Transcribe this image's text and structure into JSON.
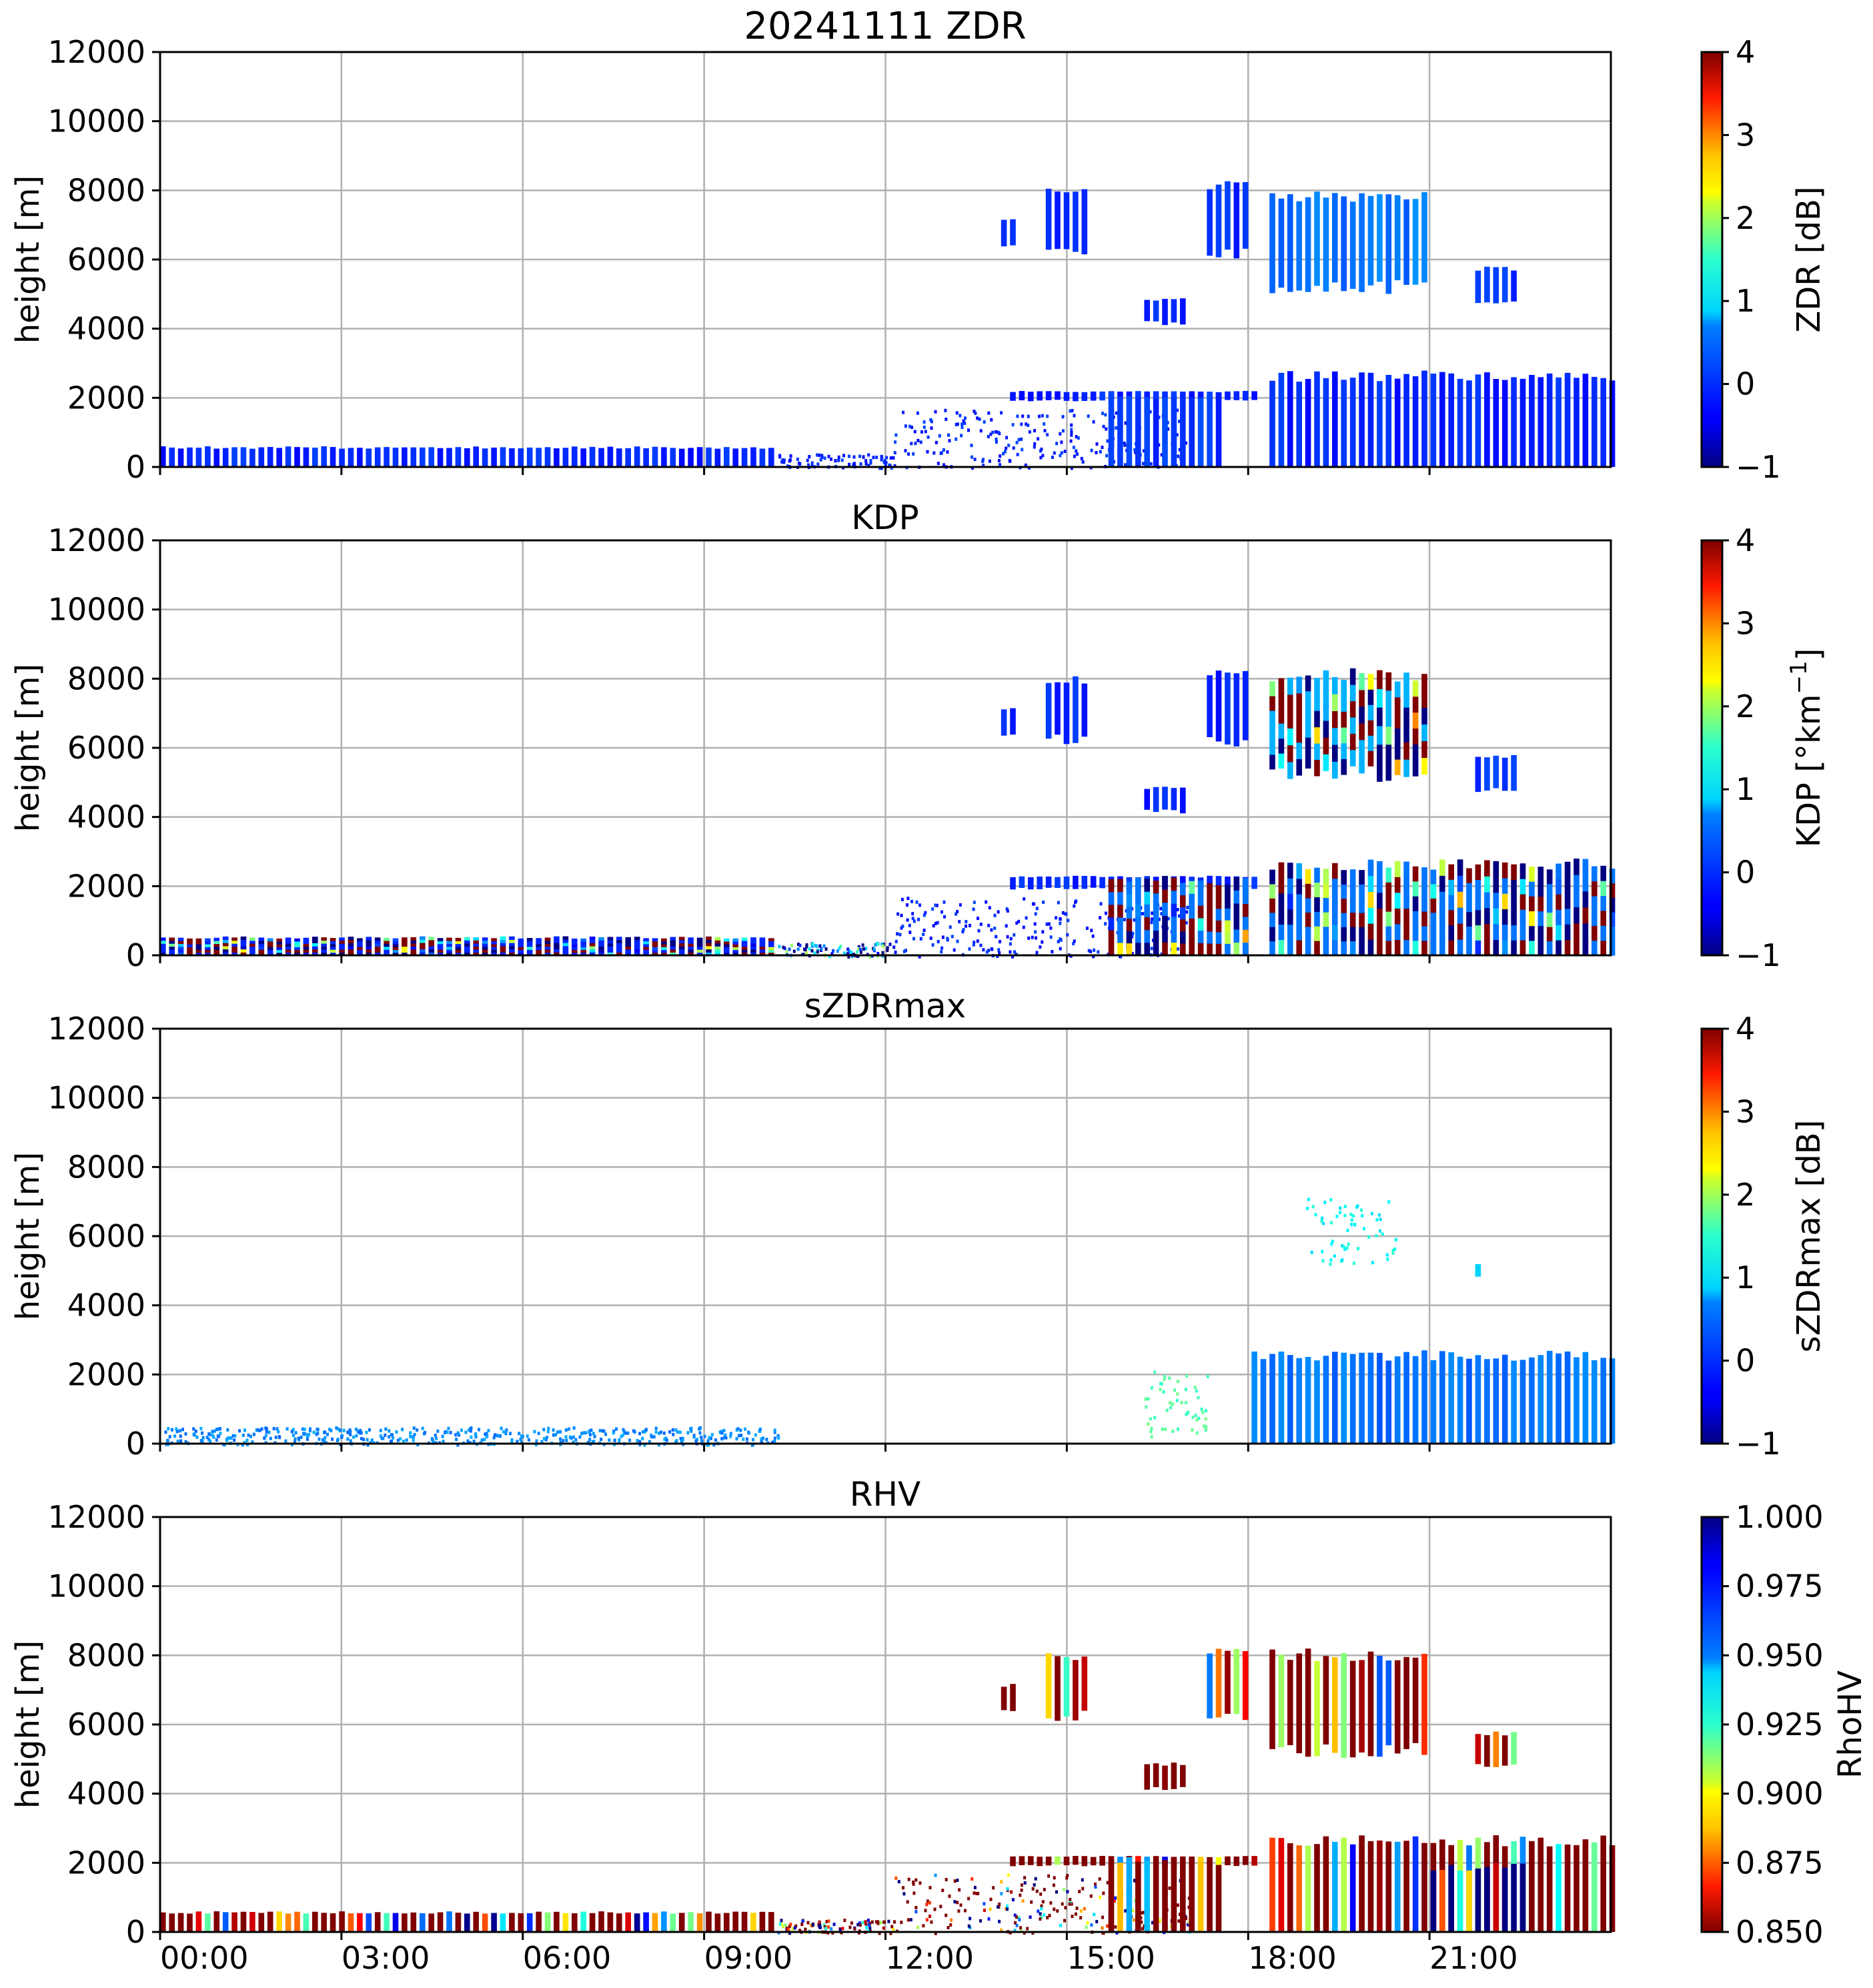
{
  "chart_data": [
    {
      "type": "heatmap",
      "id": "zdr",
      "title": "20241111 ZDR",
      "xlabel": "",
      "ylabel": "height [m]",
      "xlim_hours": [
        0,
        24
      ],
      "ylim": [
        0,
        12000
      ],
      "x_ticks": [
        "00:00",
        "03:00",
        "06:00",
        "09:00",
        "12:00",
        "15:00",
        "18:00",
        "21:00"
      ],
      "x_tick_labels_visible": false,
      "y_ticks": [
        "0",
        "2000",
        "4000",
        "6000",
        "8000",
        "10000",
        "12000"
      ],
      "grid": true,
      "colormap": "jet",
      "colorbar": {
        "label": "ZDR [dB]",
        "vmin": -1,
        "vmax": 4,
        "ticks": [
          "−1",
          "0",
          "1",
          "2",
          "3",
          "4"
        ]
      },
      "echo_regions": [
        {
          "t": [
            0.0,
            10.1
          ],
          "h": [
            0,
            600
          ],
          "value": -0.2,
          "stripes": true
        },
        {
          "t": [
            10.1,
            12.0
          ],
          "h": [
            0,
            400
          ],
          "value": -0.2,
          "sparse": true
        },
        {
          "t": [
            12.0,
            17.0
          ],
          "h": [
            0,
            1700
          ],
          "value": -0.2,
          "sparse": true
        },
        {
          "t": [
            14.0,
            18.2
          ],
          "h": [
            1900,
            2200
          ],
          "value": -0.2,
          "stripes": true
        },
        {
          "t": [
            15.6,
            17.5
          ],
          "h": [
            0,
            2200
          ],
          "value": -0.1,
          "stripes": true
        },
        {
          "t": [
            18.3,
            24.0
          ],
          "h": [
            0,
            2800
          ],
          "value": -0.2,
          "stripes": true
        },
        {
          "t": [
            13.9,
            14.1
          ],
          "h": [
            6300,
            7200
          ],
          "value": -0.2,
          "stripes": true
        },
        {
          "t": [
            14.6,
            15.3
          ],
          "h": [
            6100,
            8100
          ],
          "value": -0.2,
          "stripes": true
        },
        {
          "t": [
            16.2,
            16.9
          ],
          "h": [
            4100,
            4900
          ],
          "value": -0.2,
          "stripes": true
        },
        {
          "t": [
            17.3,
            18.0
          ],
          "h": [
            6000,
            8300
          ],
          "value": -0.2,
          "stripes": true
        },
        {
          "t": [
            18.3,
            20.9
          ],
          "h": [
            5000,
            8000
          ],
          "value": 0.2,
          "stripes": true
        },
        {
          "t": [
            21.7,
            22.4
          ],
          "h": [
            4700,
            5800
          ],
          "value": -0.1,
          "stripes": true
        }
      ]
    },
    {
      "type": "heatmap",
      "id": "kdp",
      "title": "KDP",
      "xlabel": "",
      "ylabel": "height [m]",
      "xlim_hours": [
        0,
        24
      ],
      "ylim": [
        0,
        12000
      ],
      "x_ticks": [
        "00:00",
        "03:00",
        "06:00",
        "09:00",
        "12:00",
        "15:00",
        "18:00",
        "21:00"
      ],
      "x_tick_labels_visible": false,
      "y_ticks": [
        "0",
        "2000",
        "4000",
        "6000",
        "8000",
        "10000",
        "12000"
      ],
      "grid": true,
      "colormap": "jet",
      "colorbar": {
        "label_main": "KDP [°km",
        "label_sup": "−1",
        "label_end": "]",
        "vmin": -1,
        "vmax": 4,
        "ticks": [
          "−1",
          "0",
          "1",
          "2",
          "3",
          "4"
        ]
      },
      "echo_regions": [
        {
          "t": [
            0.0,
            10.1
          ],
          "h": [
            0,
            550
          ],
          "value": -0.2,
          "noisy": true,
          "stripes": true
        },
        {
          "t": [
            10.1,
            12.0
          ],
          "h": [
            0,
            400
          ],
          "value": -0.2,
          "sparse": true,
          "noisy": true
        },
        {
          "t": [
            12.0,
            17.0
          ],
          "h": [
            0,
            1700
          ],
          "value": -0.2,
          "sparse": true
        },
        {
          "t": [
            14.0,
            18.2
          ],
          "h": [
            1900,
            2300
          ],
          "value": -0.2,
          "stripes": true
        },
        {
          "t": [
            15.6,
            18.0
          ],
          "h": [
            0,
            2300
          ],
          "value": 0.2,
          "noisy": true,
          "stripes": true
        },
        {
          "t": [
            18.3,
            24.0
          ],
          "h": [
            0,
            2800
          ],
          "value": 0.2,
          "noisy": true,
          "stripes": true
        },
        {
          "t": [
            13.9,
            14.1
          ],
          "h": [
            6300,
            7200
          ],
          "value": -0.2,
          "stripes": true
        },
        {
          "t": [
            14.6,
            15.3
          ],
          "h": [
            6100,
            8100
          ],
          "value": -0.2,
          "stripes": true
        },
        {
          "t": [
            16.2,
            16.9
          ],
          "h": [
            4100,
            4900
          ],
          "value": -0.2,
          "stripes": true
        },
        {
          "t": [
            17.3,
            18.0
          ],
          "h": [
            6000,
            8300
          ],
          "value": -0.2,
          "stripes": true
        },
        {
          "t": [
            18.3,
            20.9
          ],
          "h": [
            5000,
            8300
          ],
          "value": 0.5,
          "noisy": true,
          "stripes": true
        },
        {
          "t": [
            21.7,
            22.4
          ],
          "h": [
            4700,
            5800
          ],
          "value": -0.1,
          "stripes": true
        }
      ]
    },
    {
      "type": "heatmap",
      "id": "szdrmax",
      "title": "sZDRmax",
      "xlabel": "",
      "ylabel": "height [m]",
      "xlim_hours": [
        0,
        24
      ],
      "ylim": [
        0,
        12000
      ],
      "x_ticks": [
        "00:00",
        "03:00",
        "06:00",
        "09:00",
        "12:00",
        "15:00",
        "18:00",
        "21:00"
      ],
      "x_tick_labels_visible": false,
      "y_ticks": [
        "0",
        "2000",
        "4000",
        "6000",
        "8000",
        "10000",
        "12000"
      ],
      "grid": true,
      "colormap": "jet",
      "colorbar": {
        "label": "sZDRmax [dB]",
        "vmin": -1,
        "vmax": 4,
        "ticks": [
          "−1",
          "0",
          "1",
          "2",
          "3",
          "4"
        ]
      },
      "echo_regions": [
        {
          "t": [
            0.0,
            10.2
          ],
          "h": [
            0,
            500
          ],
          "value": 0.3,
          "stripes": true,
          "sparse": true
        },
        {
          "t": [
            16.2,
            17.3
          ],
          "h": [
            0,
            2200
          ],
          "value": 1.3,
          "stripes": true,
          "sparse": true
        },
        {
          "t": [
            18.8,
            20.3
          ],
          "h": [
            5200,
            7200
          ],
          "value": 0.9,
          "stripes": true,
          "sparse": true
        },
        {
          "t": [
            18.0,
            24.0
          ],
          "h": [
            0,
            2700
          ],
          "value": 0.2,
          "stripes": true
        },
        {
          "t": [
            21.7,
            21.8
          ],
          "h": [
            4800,
            5200
          ],
          "value": 0.8,
          "stripes": true
        }
      ]
    },
    {
      "type": "heatmap",
      "id": "rhv",
      "title": "RHV",
      "xlabel": "",
      "ylabel": "height [m]",
      "xlim_hours": [
        0,
        24
      ],
      "ylim": [
        0,
        12000
      ],
      "x_ticks": [
        "00:00",
        "03:00",
        "06:00",
        "09:00",
        "12:00",
        "15:00",
        "18:00",
        "21:00"
      ],
      "x_tick_labels_visible": true,
      "y_ticks": [
        "0",
        "2000",
        "4000",
        "6000",
        "8000",
        "10000",
        "12000"
      ],
      "grid": true,
      "colormap": "jet_r",
      "colorbar": {
        "label": "RhoHV",
        "vmin": 0.85,
        "vmax": 1.0,
        "ticks": [
          "0.850",
          "0.875",
          "0.900",
          "0.925",
          "0.950",
          "0.975",
          "1.000"
        ]
      },
      "echo_regions": [
        {
          "t": [
            0.0,
            10.1
          ],
          "h": [
            0,
            600
          ],
          "value": 0.85,
          "stripes": true
        },
        {
          "t": [
            10.1,
            12.0
          ],
          "h": [
            0,
            400
          ],
          "value": 0.85,
          "sparse": true
        },
        {
          "t": [
            12.0,
            17.0
          ],
          "h": [
            0,
            1700
          ],
          "value": 0.85,
          "sparse": true
        },
        {
          "t": [
            14.0,
            18.2
          ],
          "h": [
            1900,
            2200
          ],
          "value": 0.85,
          "stripes": true
        },
        {
          "t": [
            15.6,
            17.5
          ],
          "h": [
            0,
            2200
          ],
          "value": 0.85,
          "stripes": true
        },
        {
          "t": [
            18.3,
            24.0
          ],
          "h": [
            0,
            2800
          ],
          "value": 0.85,
          "stripes": true
        },
        {
          "t": [
            21.0,
            22.5
          ],
          "h": [
            0,
            2000
          ],
          "value": 1.0,
          "stripes": true
        },
        {
          "t": [
            13.9,
            14.1
          ],
          "h": [
            6300,
            7200
          ],
          "value": 0.85,
          "stripes": true
        },
        {
          "t": [
            14.6,
            15.3
          ],
          "h": [
            6100,
            8100
          ],
          "value": 0.85,
          "stripes": true
        },
        {
          "t": [
            16.2,
            16.9
          ],
          "h": [
            4100,
            4900
          ],
          "value": 0.85,
          "stripes": true
        },
        {
          "t": [
            17.3,
            18.0
          ],
          "h": [
            6000,
            8300
          ],
          "value": 0.85,
          "stripes": true
        },
        {
          "t": [
            18.3,
            20.9
          ],
          "h": [
            5000,
            8200
          ],
          "value": 0.85,
          "stripes": true
        },
        {
          "t": [
            21.7,
            22.4
          ],
          "h": [
            4700,
            5800
          ],
          "value": 0.85,
          "stripes": true
        }
      ]
    }
  ]
}
